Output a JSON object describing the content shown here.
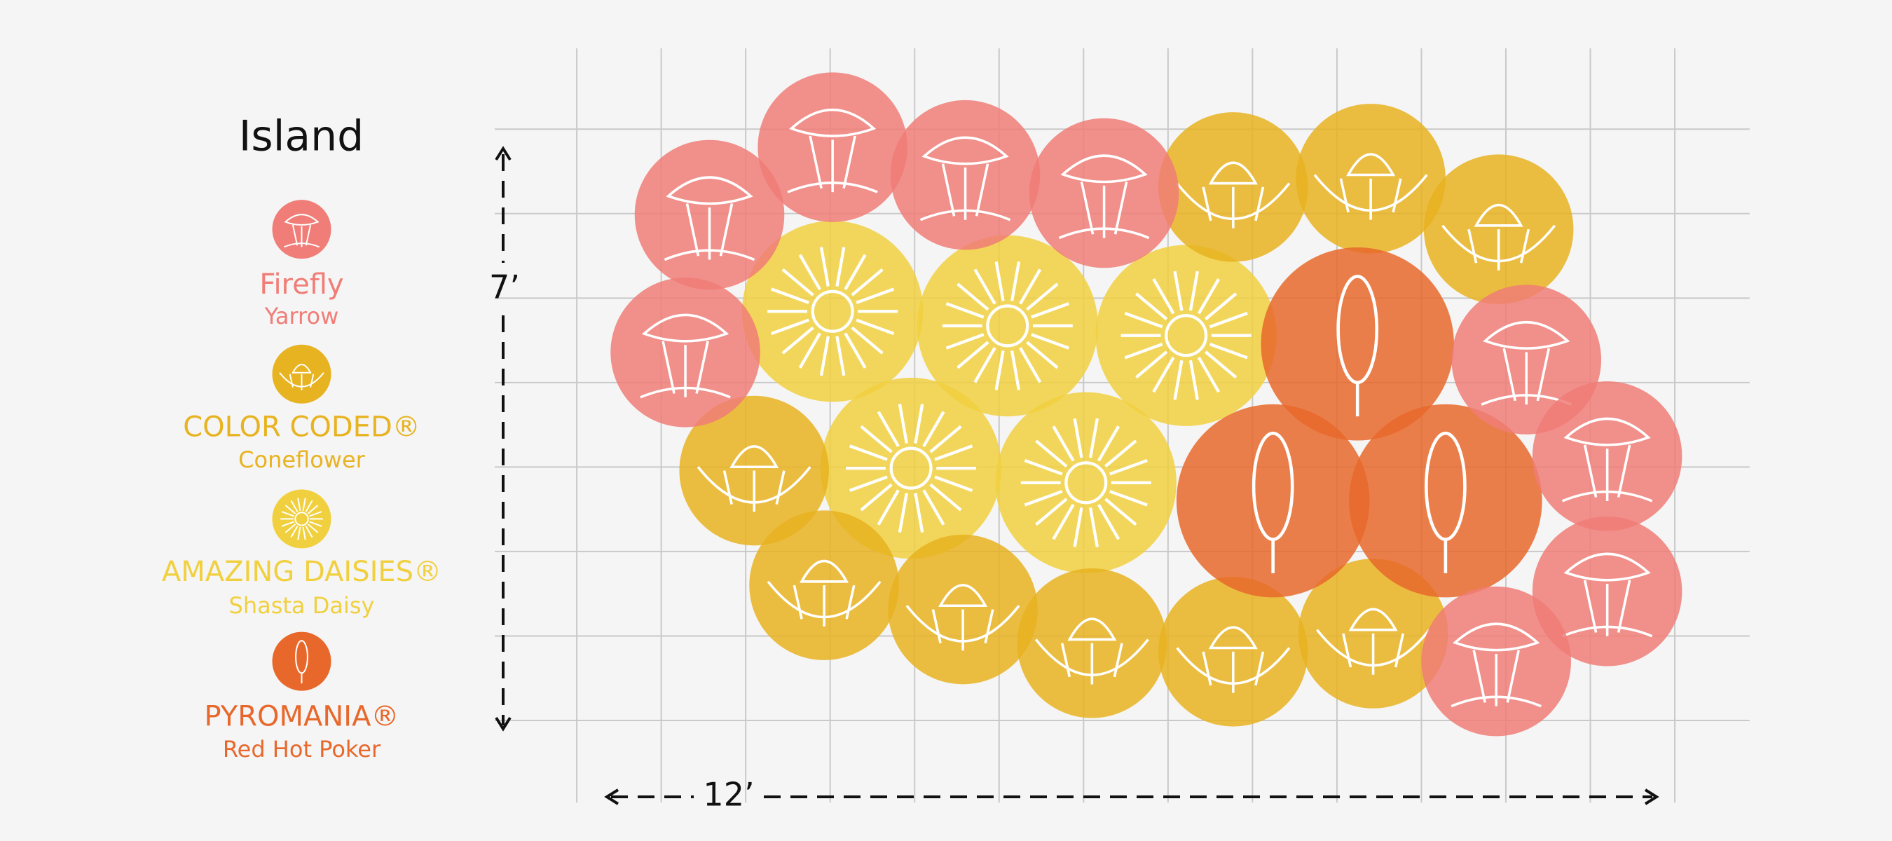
{
  "title": "Island",
  "legend": [
    {
      "name": "Firefly",
      "subname": "Yarrow",
      "color": "#f07d77"
    },
    {
      "name": "COLOR CODED®",
      "subname": "Coneflower",
      "color": "#e8b321"
    },
    {
      "name": "AMAZING DAISIES®",
      "subname": "Shasta Daisy",
      "color": "#f1d03f"
    },
    {
      "name": "PYROMANIA®",
      "subname": "Red Hot Poker",
      "color": "#e8682c"
    }
  ],
  "dimensions": {
    "height": "7’",
    "width": "12’"
  }
}
